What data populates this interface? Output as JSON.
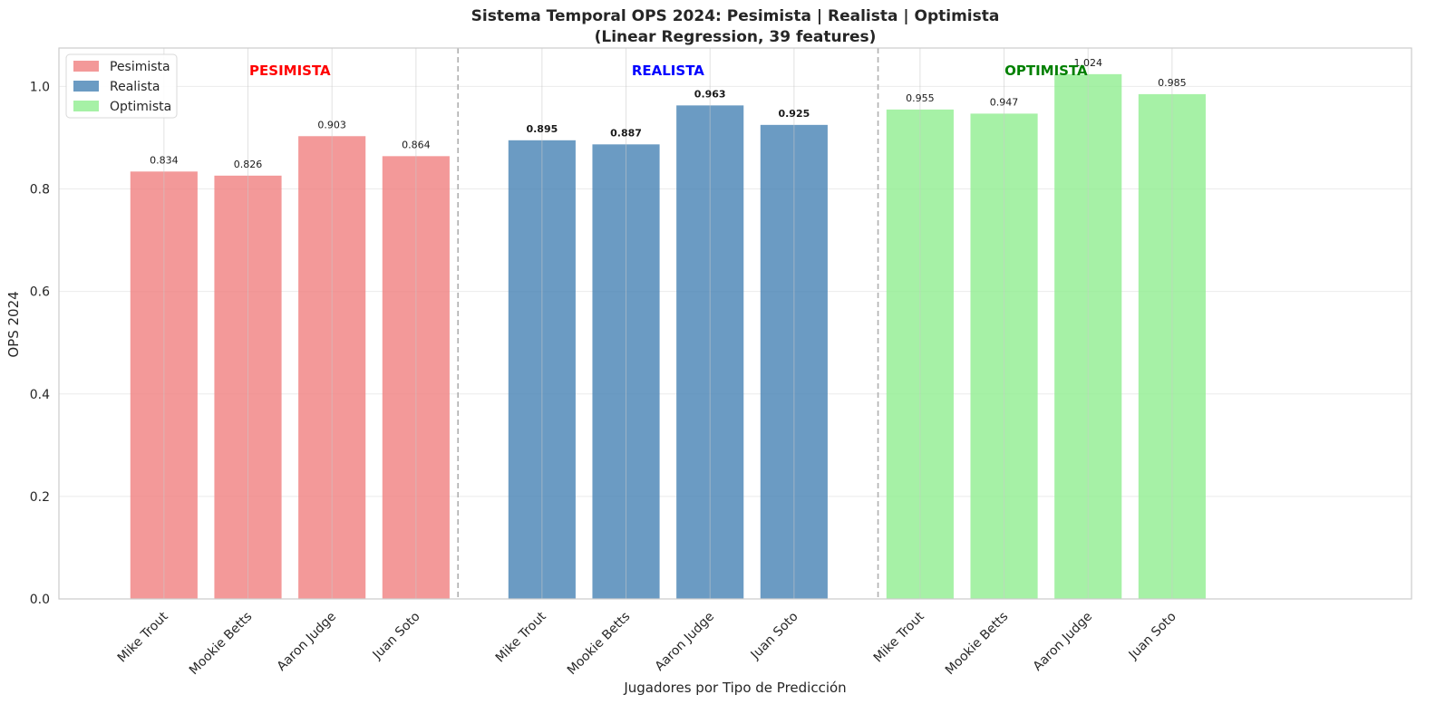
{
  "chart_data": {
    "type": "bar",
    "title": "Sistema Temporal OPS 2024: Pesimista | Realista | Optimista",
    "subtitle": "(Linear Regression, 39 features)",
    "xlabel": "Jugadores por Tipo de Predicción",
    "ylabel": "OPS 2024",
    "ylim": [
      0,
      1.075
    ],
    "yticks": [
      "0.0",
      "0.2",
      "0.4",
      "0.6",
      "0.8",
      "1.0"
    ],
    "grid": true,
    "legend_position": "top-left",
    "groups": [
      {
        "name": "Pesimista",
        "section_label": "PESIMISTA",
        "color": "#f08080",
        "label_color": "#ff0000",
        "categories": [
          "Mike Trout",
          "Mookie Betts",
          "Aaron Judge",
          "Juan Soto"
        ],
        "values": [
          0.834,
          0.826,
          0.903,
          0.864
        ],
        "value_labels": [
          "0.834",
          "0.826",
          "0.903",
          "0.864"
        ]
      },
      {
        "name": "Realista",
        "section_label": "REALISTA",
        "color": "#4682b4",
        "label_color": "#0000ff",
        "categories": [
          "Mike Trout",
          "Mookie Betts",
          "Aaron Judge",
          "Juan Soto"
        ],
        "values": [
          0.895,
          0.887,
          0.963,
          0.925
        ],
        "value_labels": [
          "0.895",
          "0.887",
          "0.963",
          "0.925"
        ]
      },
      {
        "name": "Optimista",
        "section_label": "OPTIMISTA",
        "color": "#90ee90",
        "label_color": "#008000",
        "categories": [
          "Mike Trout",
          "Mookie Betts",
          "Aaron Judge",
          "Juan Soto"
        ],
        "values": [
          0.955,
          0.947,
          1.024,
          0.985
        ],
        "value_labels": [
          "0.955",
          "0.947",
          "1.024",
          "0.985"
        ]
      }
    ]
  }
}
